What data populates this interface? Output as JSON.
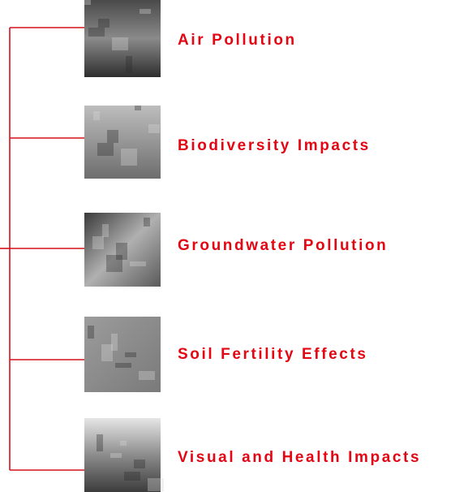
{
  "items": [
    {
      "label": "Air Pollution"
    },
    {
      "label": "Biodiversity Impacts"
    },
    {
      "label": "Groundwater Pollution"
    },
    {
      "label": "Soil Fertility Effects"
    },
    {
      "label": "Visual and Health Impacts"
    }
  ]
}
